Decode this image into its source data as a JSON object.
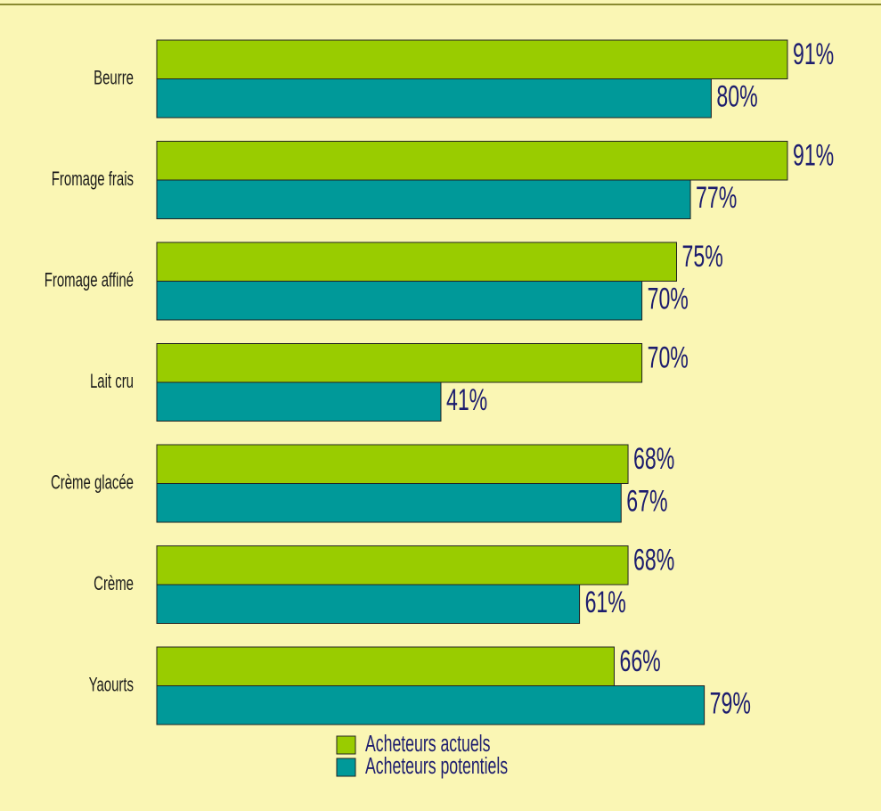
{
  "chart_data": {
    "type": "bar",
    "categories": [
      "Beurre",
      "Fromage frais",
      "Fromage affiné",
      "Lait cru",
      "Crème glacée",
      "Crème",
      "Yaourts"
    ],
    "series": [
      {
        "name": "Acheteurs actuels",
        "color": "#99cc00",
        "values": [
          91,
          91,
          75,
          70,
          68,
          68,
          66
        ],
        "value_labels": [
          "91%",
          "91%",
          "75%",
          "70%",
          "68%",
          "68%",
          "66%"
        ]
      },
      {
        "name": "Acheteurs potentiels",
        "color": "#009999",
        "values": [
          80,
          77,
          70,
          41,
          67,
          61,
          79
        ],
        "value_labels": [
          "80%",
          "77%",
          "70%",
          "41%",
          "67%",
          "61%",
          "79%"
        ]
      }
    ]
  }
}
